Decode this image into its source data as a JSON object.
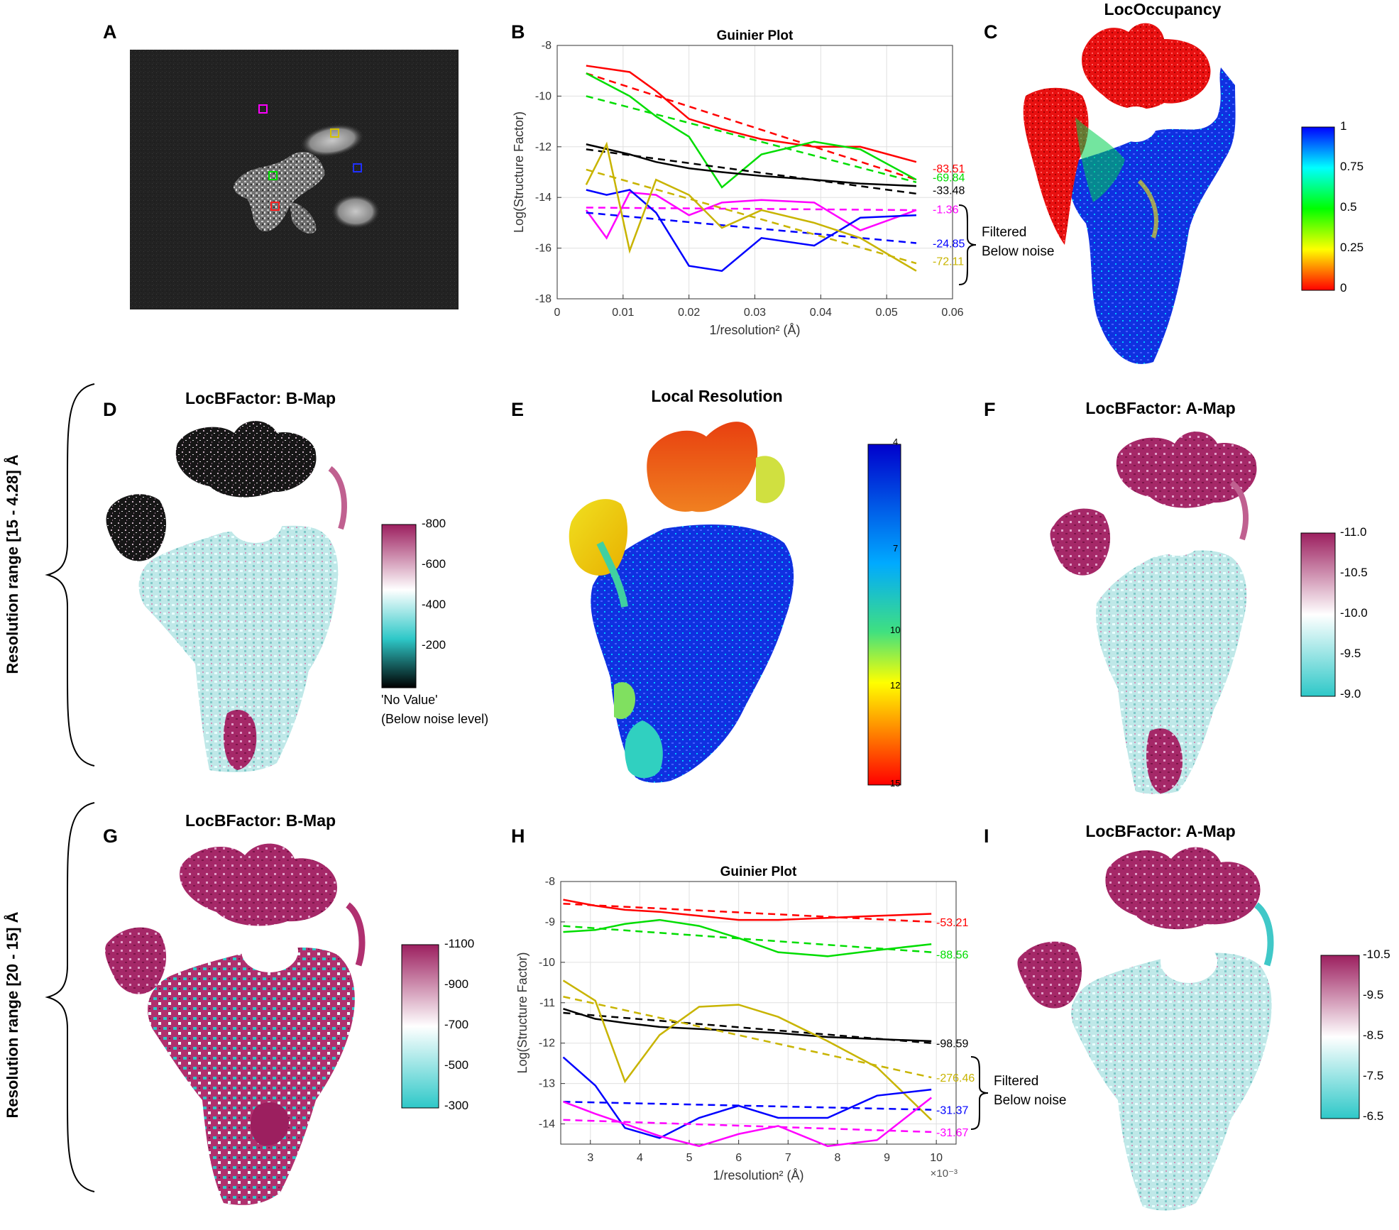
{
  "panel_letters": {
    "A": "A",
    "B": "B",
    "C": "C",
    "D": "D",
    "E": "E",
    "F": "F",
    "G": "G",
    "H": "H",
    "I": "I"
  },
  "titles": {
    "B": "Guinier Plot",
    "C": "LocOccupancy",
    "D": "LocBFactor: B-Map",
    "E": "Local Resolution",
    "F": "LocBFactor: A-Map",
    "G": "LocBFactor: B-Map",
    "H": "Guinier Plot",
    "I": "LocBFactor: A-Map"
  },
  "row_labels": {
    "top": "Resolution range [15 - 4.28] Å",
    "bottom": "Resolution range [20 - 15] Å"
  },
  "axes": {
    "ylabel": "Log(Structure Factor)",
    "xlabel": "1/resolution² (Å)",
    "h_xexp": "×10⁻³"
  },
  "annotations": {
    "filtered_line1": "Filtered",
    "filtered_line2": "Below noise"
  },
  "colorbars": {
    "C": {
      "ticks": [
        "1",
        "0.75",
        "0.5",
        "0.25",
        "0"
      ],
      "colors": [
        "#0000ff",
        "#00ffff",
        "#00ff00",
        "#ffff00",
        "#ff0000"
      ]
    },
    "D": {
      "ticks": [
        "-800",
        "-600",
        "-400",
        "-200"
      ],
      "note1": "'No Value'",
      "note2": "(Below noise level)",
      "colors": [
        "#9c1f5f",
        "#ffffff",
        "#2ec8c8",
        "#000000"
      ]
    },
    "E": {
      "ticks": [
        "4",
        "7",
        "10",
        "12",
        "15"
      ],
      "colors": [
        "#0000cc",
        "#00aaff",
        "#ffff00",
        "#ff0000"
      ]
    },
    "F": {
      "ticks": [
        "-11.0",
        "-10.5",
        "-10.0",
        "-9.5",
        "-9.0"
      ],
      "colors": [
        "#9c1f5f",
        "#ffffff",
        "#2ec8c8"
      ]
    },
    "G": {
      "ticks": [
        "-1100",
        "-900",
        "-700",
        "-500",
        "-300"
      ],
      "colors": [
        "#9c1f5f",
        "#ffffff",
        "#2ec8c8"
      ]
    },
    "I": {
      "ticks": [
        "-10.5",
        "-9.5",
        "-8.5",
        "-7.5",
        "-6.5"
      ],
      "colors": [
        "#9c1f5f",
        "#ffffff",
        "#2ec8c8"
      ]
    }
  },
  "chart_data": [
    {
      "type": "line",
      "panel": "B",
      "title": "Guinier Plot",
      "xlabel": "1/resolution² (Å)",
      "ylabel": "Log(Structure Factor)",
      "xlim": [
        0,
        0.06
      ],
      "ylim": [
        -18,
        -8
      ],
      "xticks": [
        "0",
        "0.01",
        "0.02",
        "0.03",
        "0.04",
        "0.05",
        "0.06"
      ],
      "yticks": [
        "-8",
        "-10",
        "-12",
        "-14",
        "-16",
        "-18"
      ],
      "grid": true,
      "series": [
        {
          "color": "#ff0000",
          "label": "-83.51",
          "x": [
            0.0044,
            0.011,
            0.015,
            0.02,
            0.025,
            0.031,
            0.039,
            0.046,
            0.0545
          ],
          "y": [
            -8.8,
            -9.05,
            -9.8,
            -10.9,
            -11.3,
            -11.7,
            -12.0,
            -12.0,
            -12.6
          ],
          "fit_x": [
            0.0044,
            0.0545
          ],
          "fit_y": [
            -9.1,
            -13.3
          ],
          "label_y": -12.85
        },
        {
          "color": "#00dd00",
          "label": "-69.84",
          "x": [
            0.0044,
            0.011,
            0.015,
            0.02,
            0.025,
            0.031,
            0.039,
            0.046,
            0.0545
          ],
          "y": [
            -9.1,
            -10.0,
            -10.8,
            -11.6,
            -13.6,
            -12.3,
            -11.8,
            -12.1,
            -13.3
          ],
          "fit_x": [
            0.0044,
            0.0545
          ],
          "fit_y": [
            -10.0,
            -13.4
          ],
          "label_y": -13.2
        },
        {
          "color": "#000000",
          "label": "-33.48",
          "x": [
            0.0044,
            0.011,
            0.015,
            0.02,
            0.025,
            0.031,
            0.039,
            0.046,
            0.0545
          ],
          "y": [
            -11.9,
            -12.3,
            -12.6,
            -12.85,
            -13.0,
            -13.15,
            -13.3,
            -13.45,
            -13.55
          ],
          "fit_x": [
            0.0044,
            0.0545
          ],
          "fit_y": [
            -12.1,
            -13.85
          ],
          "label_y": -13.7
        },
        {
          "color": "#ff00ff",
          "label": "-1.36",
          "x": [
            0.0044,
            0.0075,
            0.011,
            0.015,
            0.02,
            0.025,
            0.031,
            0.039,
            0.046,
            0.0545
          ],
          "y": [
            -14.5,
            -15.6,
            -13.8,
            -13.9,
            -14.7,
            -14.2,
            -14.1,
            -14.2,
            -15.3,
            -14.5
          ],
          "fit_x": [
            0.0044,
            0.0545
          ],
          "fit_y": [
            -14.4,
            -14.5
          ],
          "label_y": -14.45
        },
        {
          "color": "#0000ff",
          "label": "-24.85",
          "x": [
            0.0044,
            0.0075,
            0.011,
            0.015,
            0.02,
            0.025,
            0.031,
            0.039,
            0.046,
            0.0545
          ],
          "y": [
            -13.7,
            -13.9,
            -13.7,
            -14.6,
            -16.7,
            -16.9,
            -15.6,
            -15.9,
            -14.8,
            -14.7
          ],
          "fit_x": [
            0.0044,
            0.0545
          ],
          "fit_y": [
            -14.6,
            -15.8
          ],
          "label_y": -15.8
        },
        {
          "color": "#c8b400",
          "label": "-72.11",
          "x": [
            0.0044,
            0.0075,
            0.011,
            0.015,
            0.02,
            0.025,
            0.031,
            0.039,
            0.046,
            0.0545
          ],
          "y": [
            -13.5,
            -11.9,
            -16.1,
            -13.3,
            -13.9,
            -15.2,
            -14.5,
            -15.0,
            -15.6,
            -16.9
          ],
          "fit_x": [
            0.0044,
            0.0545
          ],
          "fit_y": [
            -12.9,
            -16.6
          ],
          "label_y": -16.5
        }
      ]
    },
    {
      "type": "line",
      "panel": "H",
      "title": "Guinier Plot",
      "xlabel": "1/resolution² (Å)",
      "ylabel": "Log(Structure Factor)",
      "xlim": [
        2.4,
        10.4
      ],
      "ylim": [
        -14.5,
        -8
      ],
      "xticks": [
        "3",
        "4",
        "5",
        "6",
        "7",
        "8",
        "9",
        "10"
      ],
      "yticks": [
        "-8",
        "-9",
        "-10",
        "-11",
        "-12",
        "-13",
        "-14"
      ],
      "x_multiplier": "×10⁻³",
      "grid": true,
      "series": [
        {
          "color": "#ff0000",
          "label": "-53.21",
          "x": [
            2.45,
            3.1,
            3.7,
            4.4,
            5.2,
            6.0,
            6.8,
            7.8,
            8.8,
            9.9
          ],
          "y": [
            -8.45,
            -8.6,
            -8.7,
            -8.75,
            -8.85,
            -8.95,
            -8.95,
            -8.9,
            -8.85,
            -8.8
          ],
          "fit_x": [
            2.45,
            9.9
          ],
          "fit_y": [
            -8.55,
            -9.0
          ],
          "label_y": -9.0
        },
        {
          "color": "#00dd00",
          "label": "-88.56",
          "x": [
            2.45,
            3.1,
            3.7,
            4.4,
            5.2,
            6.0,
            6.8,
            7.8,
            8.8,
            9.9
          ],
          "y": [
            -9.25,
            -9.2,
            -9.05,
            -8.95,
            -9.1,
            -9.4,
            -9.75,
            -9.85,
            -9.7,
            -9.55
          ],
          "fit_x": [
            2.45,
            9.9
          ],
          "fit_y": [
            -9.1,
            -9.75
          ],
          "label_y": -9.8
        },
        {
          "color": "#000000",
          "label": "-98.59",
          "x": [
            2.45,
            3.1,
            3.7,
            4.4,
            5.2,
            6.0,
            6.8,
            7.8,
            8.8,
            9.9
          ],
          "y": [
            -11.15,
            -11.4,
            -11.5,
            -11.6,
            -11.65,
            -11.7,
            -11.75,
            -11.85,
            -11.9,
            -11.95
          ],
          "fit_x": [
            2.45,
            9.9
          ],
          "fit_y": [
            -11.25,
            -12.0
          ],
          "label_y": -12.0
        },
        {
          "color": "#c8b400",
          "label": "-276.46",
          "x": [
            2.45,
            3.1,
            3.7,
            4.4,
            5.2,
            6.0,
            6.8,
            7.8,
            8.8,
            9.9
          ],
          "y": [
            -10.45,
            -10.95,
            -12.95,
            -11.8,
            -11.1,
            -11.05,
            -11.35,
            -11.95,
            -12.6,
            -13.9
          ],
          "fit_x": [
            2.45,
            9.9
          ],
          "fit_y": [
            -10.85,
            -12.85
          ],
          "label_y": -12.85
        },
        {
          "color": "#0000ff",
          "label": "-31.37",
          "x": [
            2.45,
            3.1,
            3.7,
            4.4,
            5.2,
            6.0,
            6.8,
            7.8,
            8.8,
            9.9
          ],
          "y": [
            -12.35,
            -13.05,
            -14.1,
            -14.35,
            -13.85,
            -13.55,
            -13.85,
            -13.85,
            -13.3,
            -13.15
          ],
          "fit_x": [
            2.45,
            9.9
          ],
          "fit_y": [
            -13.45,
            -13.65
          ],
          "label_y": -13.65
        },
        {
          "color": "#ff00ff",
          "label": "-31.67",
          "x": [
            2.45,
            3.1,
            3.7,
            4.4,
            5.2,
            6.0,
            6.8,
            7.8,
            8.8,
            9.9
          ],
          "y": [
            -13.45,
            -13.75,
            -14.0,
            -14.3,
            -14.55,
            -14.25,
            -14.05,
            -14.55,
            -14.4,
            -13.35
          ],
          "fit_x": [
            2.45,
            9.9
          ],
          "fit_y": [
            -13.9,
            -14.2
          ],
          "label_y": -14.2
        }
      ]
    }
  ]
}
